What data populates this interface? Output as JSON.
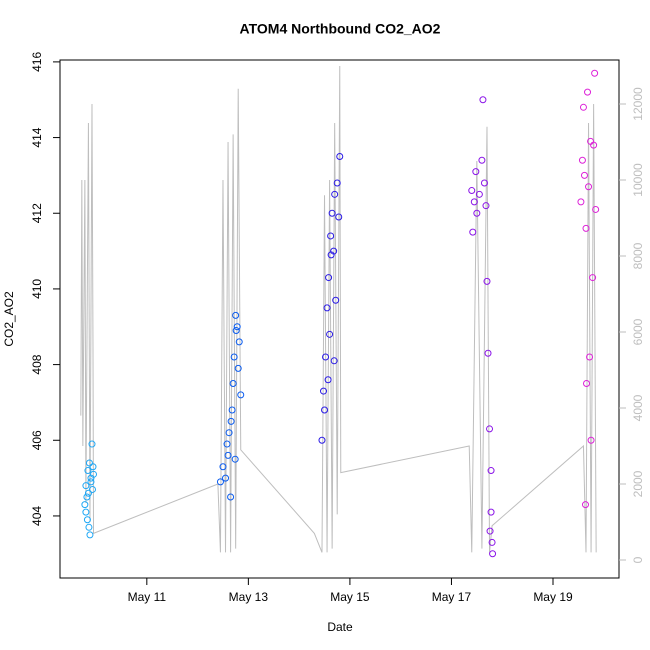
{
  "chart_data": {
    "type": "scatter",
    "title": "ATOM4 Northbound CO2_AO2",
    "x_label": "Date",
    "y_label": "CO2_AO2",
    "xlim": [
      9.29,
      20.3
    ],
    "xticks": [
      {
        "value": 11,
        "label": "May 11"
      },
      {
        "value": 13,
        "label": "May 13"
      },
      {
        "value": 15,
        "label": "May 15"
      },
      {
        "value": 17,
        "label": "May 17"
      },
      {
        "value": 19,
        "label": "May 19"
      }
    ],
    "ylim": [
      402.36,
      416.05
    ],
    "yticks": [
      404,
      406,
      408,
      410,
      412,
      414,
      416
    ],
    "y2lim": [
      -474,
      13158
    ],
    "y2ticks": [
      0,
      2000,
      4000,
      6000,
      8000,
      10000,
      12000
    ],
    "y2_color": "#bebebe",
    "grid": false,
    "series": [
      {
        "color": "#1ea7f5",
        "x": [
          9.78,
          9.8,
          9.82,
          9.84,
          9.86,
          9.88,
          9.9,
          9.92,
          9.94,
          9.8,
          9.85,
          9.9,
          9.83,
          9.87,
          9.93,
          9.95
        ],
        "values": [
          404.3,
          404.8,
          404.5,
          405.2,
          403.7,
          403.5,
          405.0,
          405.9,
          405.3,
          404.1,
          404.6,
          404.9,
          403.9,
          405.4,
          404.7,
          405.1
        ]
      },
      {
        "color": "#0a5cf0",
        "x": [
          12.45,
          12.5,
          12.55,
          12.6,
          12.62,
          12.65,
          12.68,
          12.7,
          12.72,
          12.75,
          12.78,
          12.8,
          12.82,
          12.85,
          12.58,
          12.66,
          12.74,
          12.76
        ],
        "values": [
          404.9,
          405.3,
          405.0,
          405.6,
          406.2,
          404.5,
          406.8,
          407.5,
          408.2,
          409.3,
          409.0,
          407.9,
          408.6,
          407.2,
          405.9,
          406.5,
          405.5,
          408.9
        ]
      },
      {
        "color": "#2a1ae6",
        "x": [
          14.45,
          14.48,
          14.5,
          14.52,
          14.55,
          14.58,
          14.6,
          14.62,
          14.65,
          14.68,
          14.7,
          14.72,
          14.75,
          14.78,
          14.8,
          14.57,
          14.63,
          14.69
        ],
        "values": [
          406.0,
          407.3,
          406.8,
          408.2,
          409.5,
          410.3,
          408.8,
          411.4,
          412.0,
          411.0,
          412.5,
          409.7,
          412.8,
          411.9,
          413.5,
          407.6,
          410.9,
          408.1
        ]
      },
      {
        "color": "#8a14e8",
        "x": [
          17.4,
          17.42,
          17.45,
          17.48,
          17.5,
          17.55,
          17.6,
          17.62,
          17.65,
          17.7,
          17.72,
          17.75,
          17.78,
          17.8,
          17.81,
          17.78,
          17.76,
          17.68
        ],
        "values": [
          412.6,
          411.5,
          412.3,
          413.1,
          412.0,
          412.5,
          413.4,
          415.0,
          412.8,
          410.2,
          408.3,
          406.3,
          405.2,
          403.3,
          403.0,
          404.1,
          403.6,
          412.2
        ]
      },
      {
        "color": "#dd22d8",
        "x": [
          19.55,
          19.58,
          19.6,
          19.62,
          19.65,
          19.68,
          19.7,
          19.72,
          19.75,
          19.78,
          19.8,
          19.82,
          19.64,
          19.74,
          19.66,
          19.84
        ],
        "values": [
          412.3,
          413.4,
          414.8,
          413.0,
          411.6,
          415.2,
          412.7,
          408.2,
          406.0,
          410.3,
          413.8,
          415.7,
          404.3,
          413.9,
          407.5,
          412.1
        ]
      },
      {
        "color": "#bebebe",
        "axis": "y2",
        "x": [
          9.7,
          9.72,
          9.74,
          9.78,
          9.8,
          9.85,
          9.88,
          9.92,
          9.94,
          9.95,
          12.4,
          12.45,
          12.5,
          12.55,
          12.6,
          12.65,
          12.7,
          12.75,
          12.8,
          12.85,
          14.3,
          14.45,
          14.5,
          14.55,
          14.6,
          14.65,
          14.7,
          14.75,
          14.8,
          14.82,
          17.35,
          17.4,
          17.5,
          17.6,
          17.7,
          17.75,
          17.8,
          19.6,
          19.65,
          19.7,
          19.75,
          19.8,
          19.85
        ],
        "values": [
          3800,
          10000,
          3000,
          10000,
          1500,
          11500,
          1000,
          12000,
          5500,
          700,
          2000,
          200,
          10000,
          200,
          11000,
          200,
          11200,
          300,
          12400,
          2900,
          700,
          200,
          9600,
          200,
          10000,
          300,
          11500,
          1200,
          13000,
          2300,
          3000,
          200,
          10500,
          300,
          11400,
          200,
          900,
          3000,
          200,
          11500,
          200,
          12000,
          200
        ]
      }
    ]
  }
}
